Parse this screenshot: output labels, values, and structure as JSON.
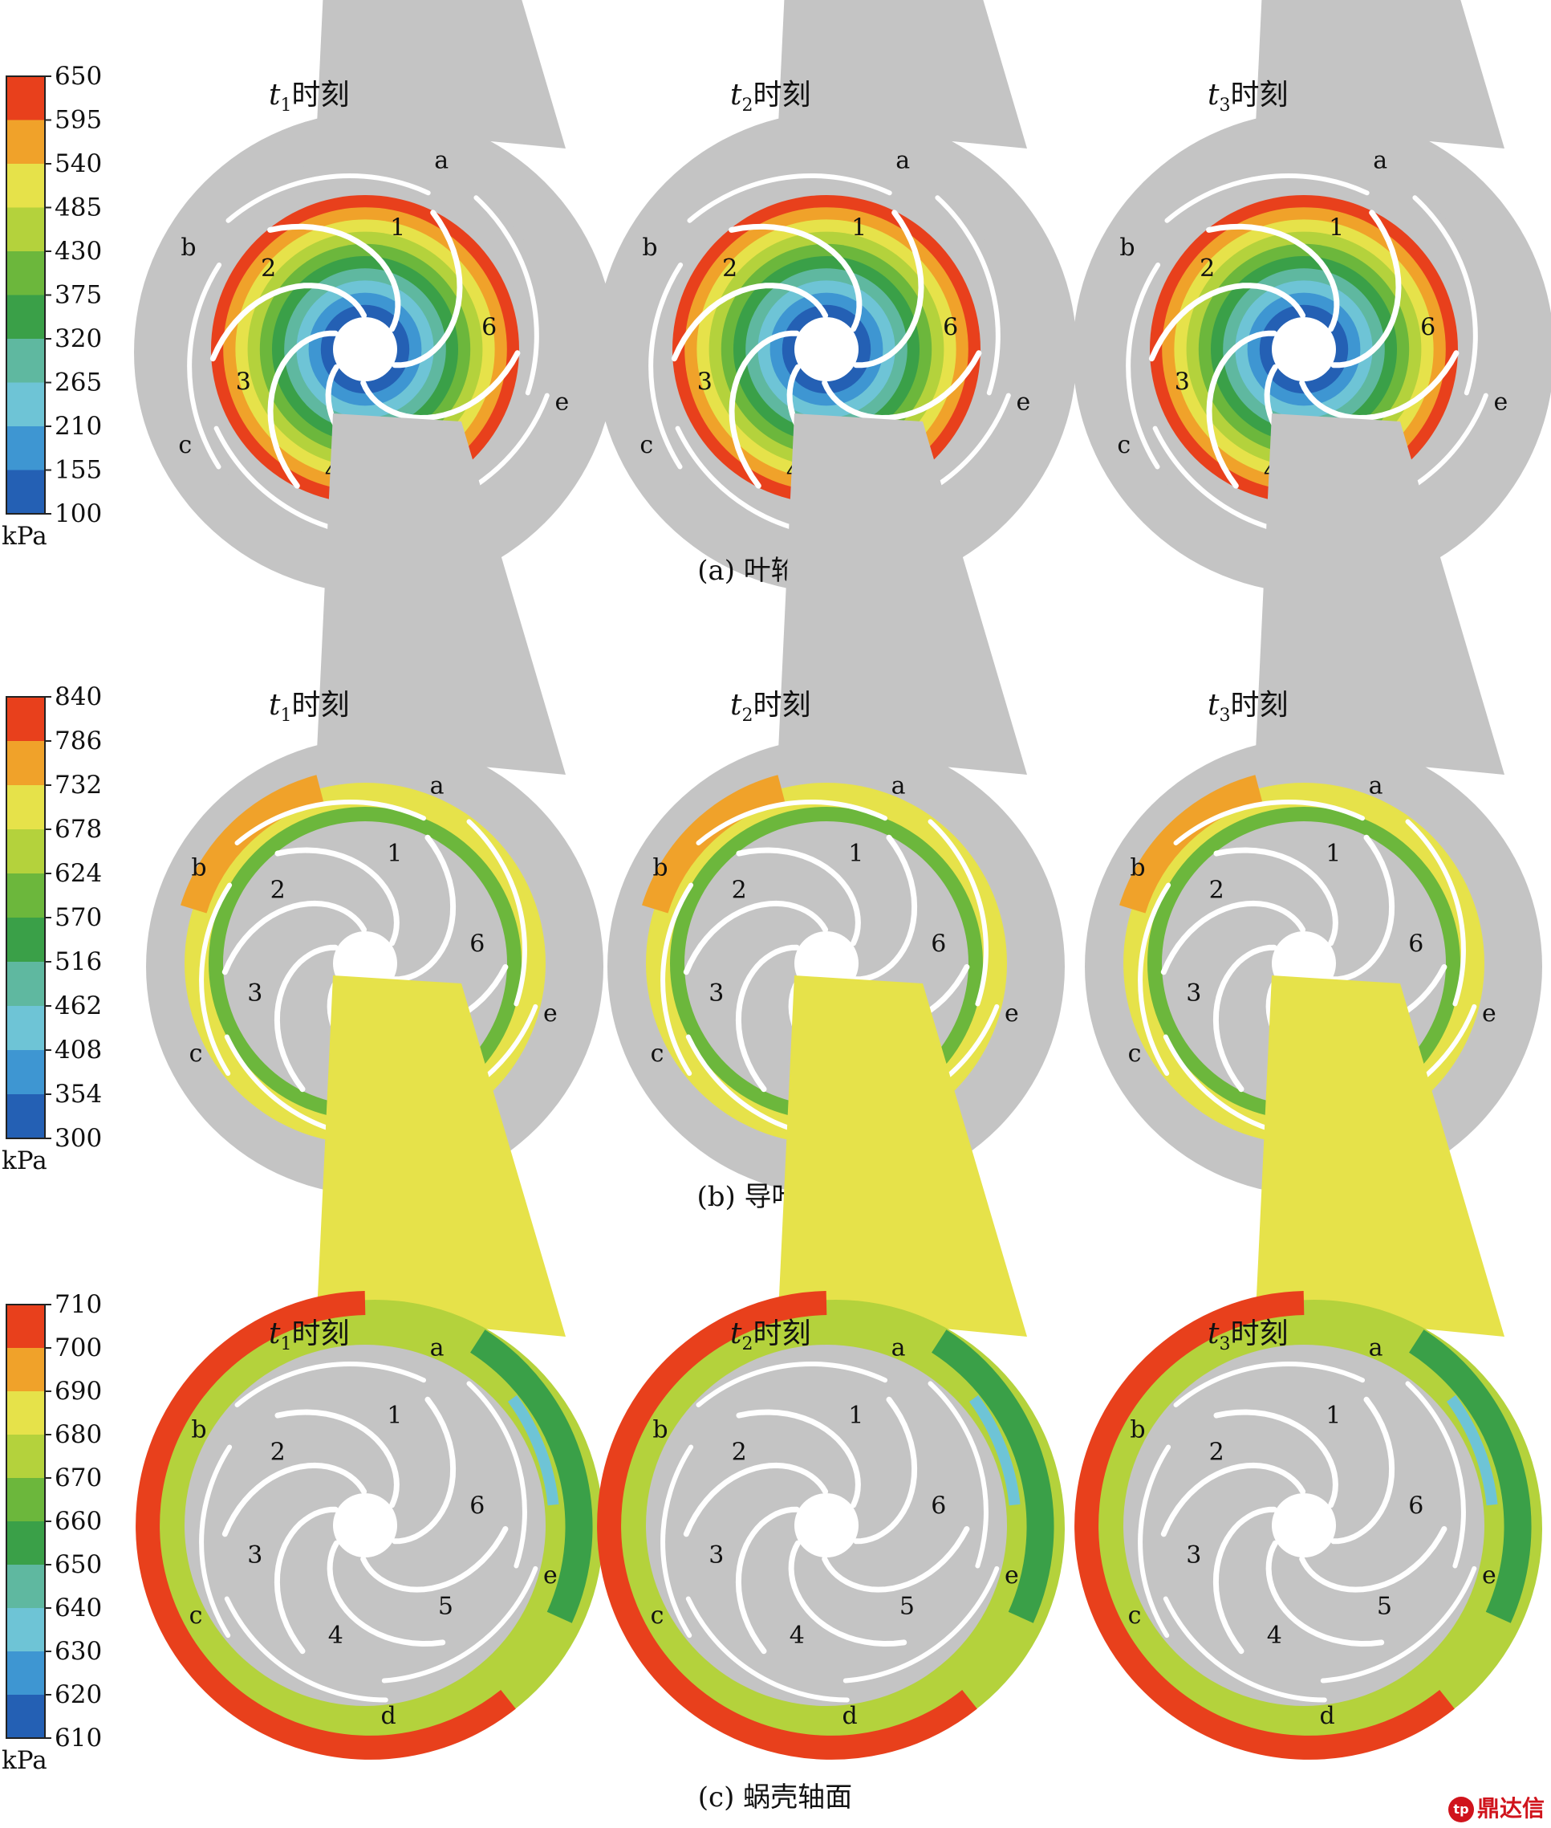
{
  "chart_data": [
    {
      "type": "heatmap",
      "caption": "(a) 叶轮轴面",
      "unit": "kPa",
      "colorbar_ticks": [
        650,
        595,
        540,
        485,
        430,
        375,
        320,
        265,
        210,
        155,
        100
      ],
      "range": [
        100,
        650
      ],
      "panels": [
        {
          "time_label": "t",
          "time_sub": "1",
          "time_suffix": "时刻"
        },
        {
          "time_label": "t",
          "time_sub": "2",
          "time_suffix": "时刻"
        },
        {
          "time_label": "t",
          "time_sub": "3",
          "time_suffix": "时刻"
        }
      ]
    },
    {
      "type": "heatmap",
      "caption": "(b) 导叶轴面",
      "unit": "kPa",
      "colorbar_ticks": [
        840,
        786,
        732,
        678,
        624,
        570,
        516,
        462,
        408,
        354,
        300
      ],
      "range": [
        300,
        840
      ],
      "panels": [
        {
          "time_label": "t",
          "time_sub": "1",
          "time_suffix": "时刻"
        },
        {
          "time_label": "t",
          "time_sub": "2",
          "time_suffix": "时刻"
        },
        {
          "time_label": "t",
          "time_sub": "3",
          "time_suffix": "时刻"
        }
      ]
    },
    {
      "type": "heatmap",
      "caption": "(c) 蜗壳轴面",
      "unit": "kPa",
      "colorbar_ticks": [
        710,
        700,
        690,
        680,
        670,
        660,
        650,
        640,
        630,
        620,
        610
      ],
      "range": [
        610,
        710
      ],
      "panels": [
        {
          "time_label": "t",
          "time_sub": "1",
          "time_suffix": "时刻"
        },
        {
          "time_label": "t",
          "time_sub": "2",
          "time_suffix": "时刻"
        },
        {
          "time_label": "t",
          "time_sub": "3",
          "time_suffix": "时刻"
        }
      ]
    }
  ],
  "blade_labels": [
    "1",
    "2",
    "3",
    "4",
    "5",
    "6"
  ],
  "vane_labels": [
    "a",
    "b",
    "c",
    "d",
    "e"
  ],
  "colors": {
    "scale": [
      "#e8401c",
      "#f0a22a",
      "#e6e24a",
      "#b4d23c",
      "#6cb73c",
      "#3aa048",
      "#5fb8a0",
      "#6ec4d6",
      "#3e96d2",
      "#2460b4",
      "#2b3f98"
    ],
    "solid": "#c4c4c4",
    "blade": "#ffffff"
  },
  "logo_text": "鼎达信"
}
